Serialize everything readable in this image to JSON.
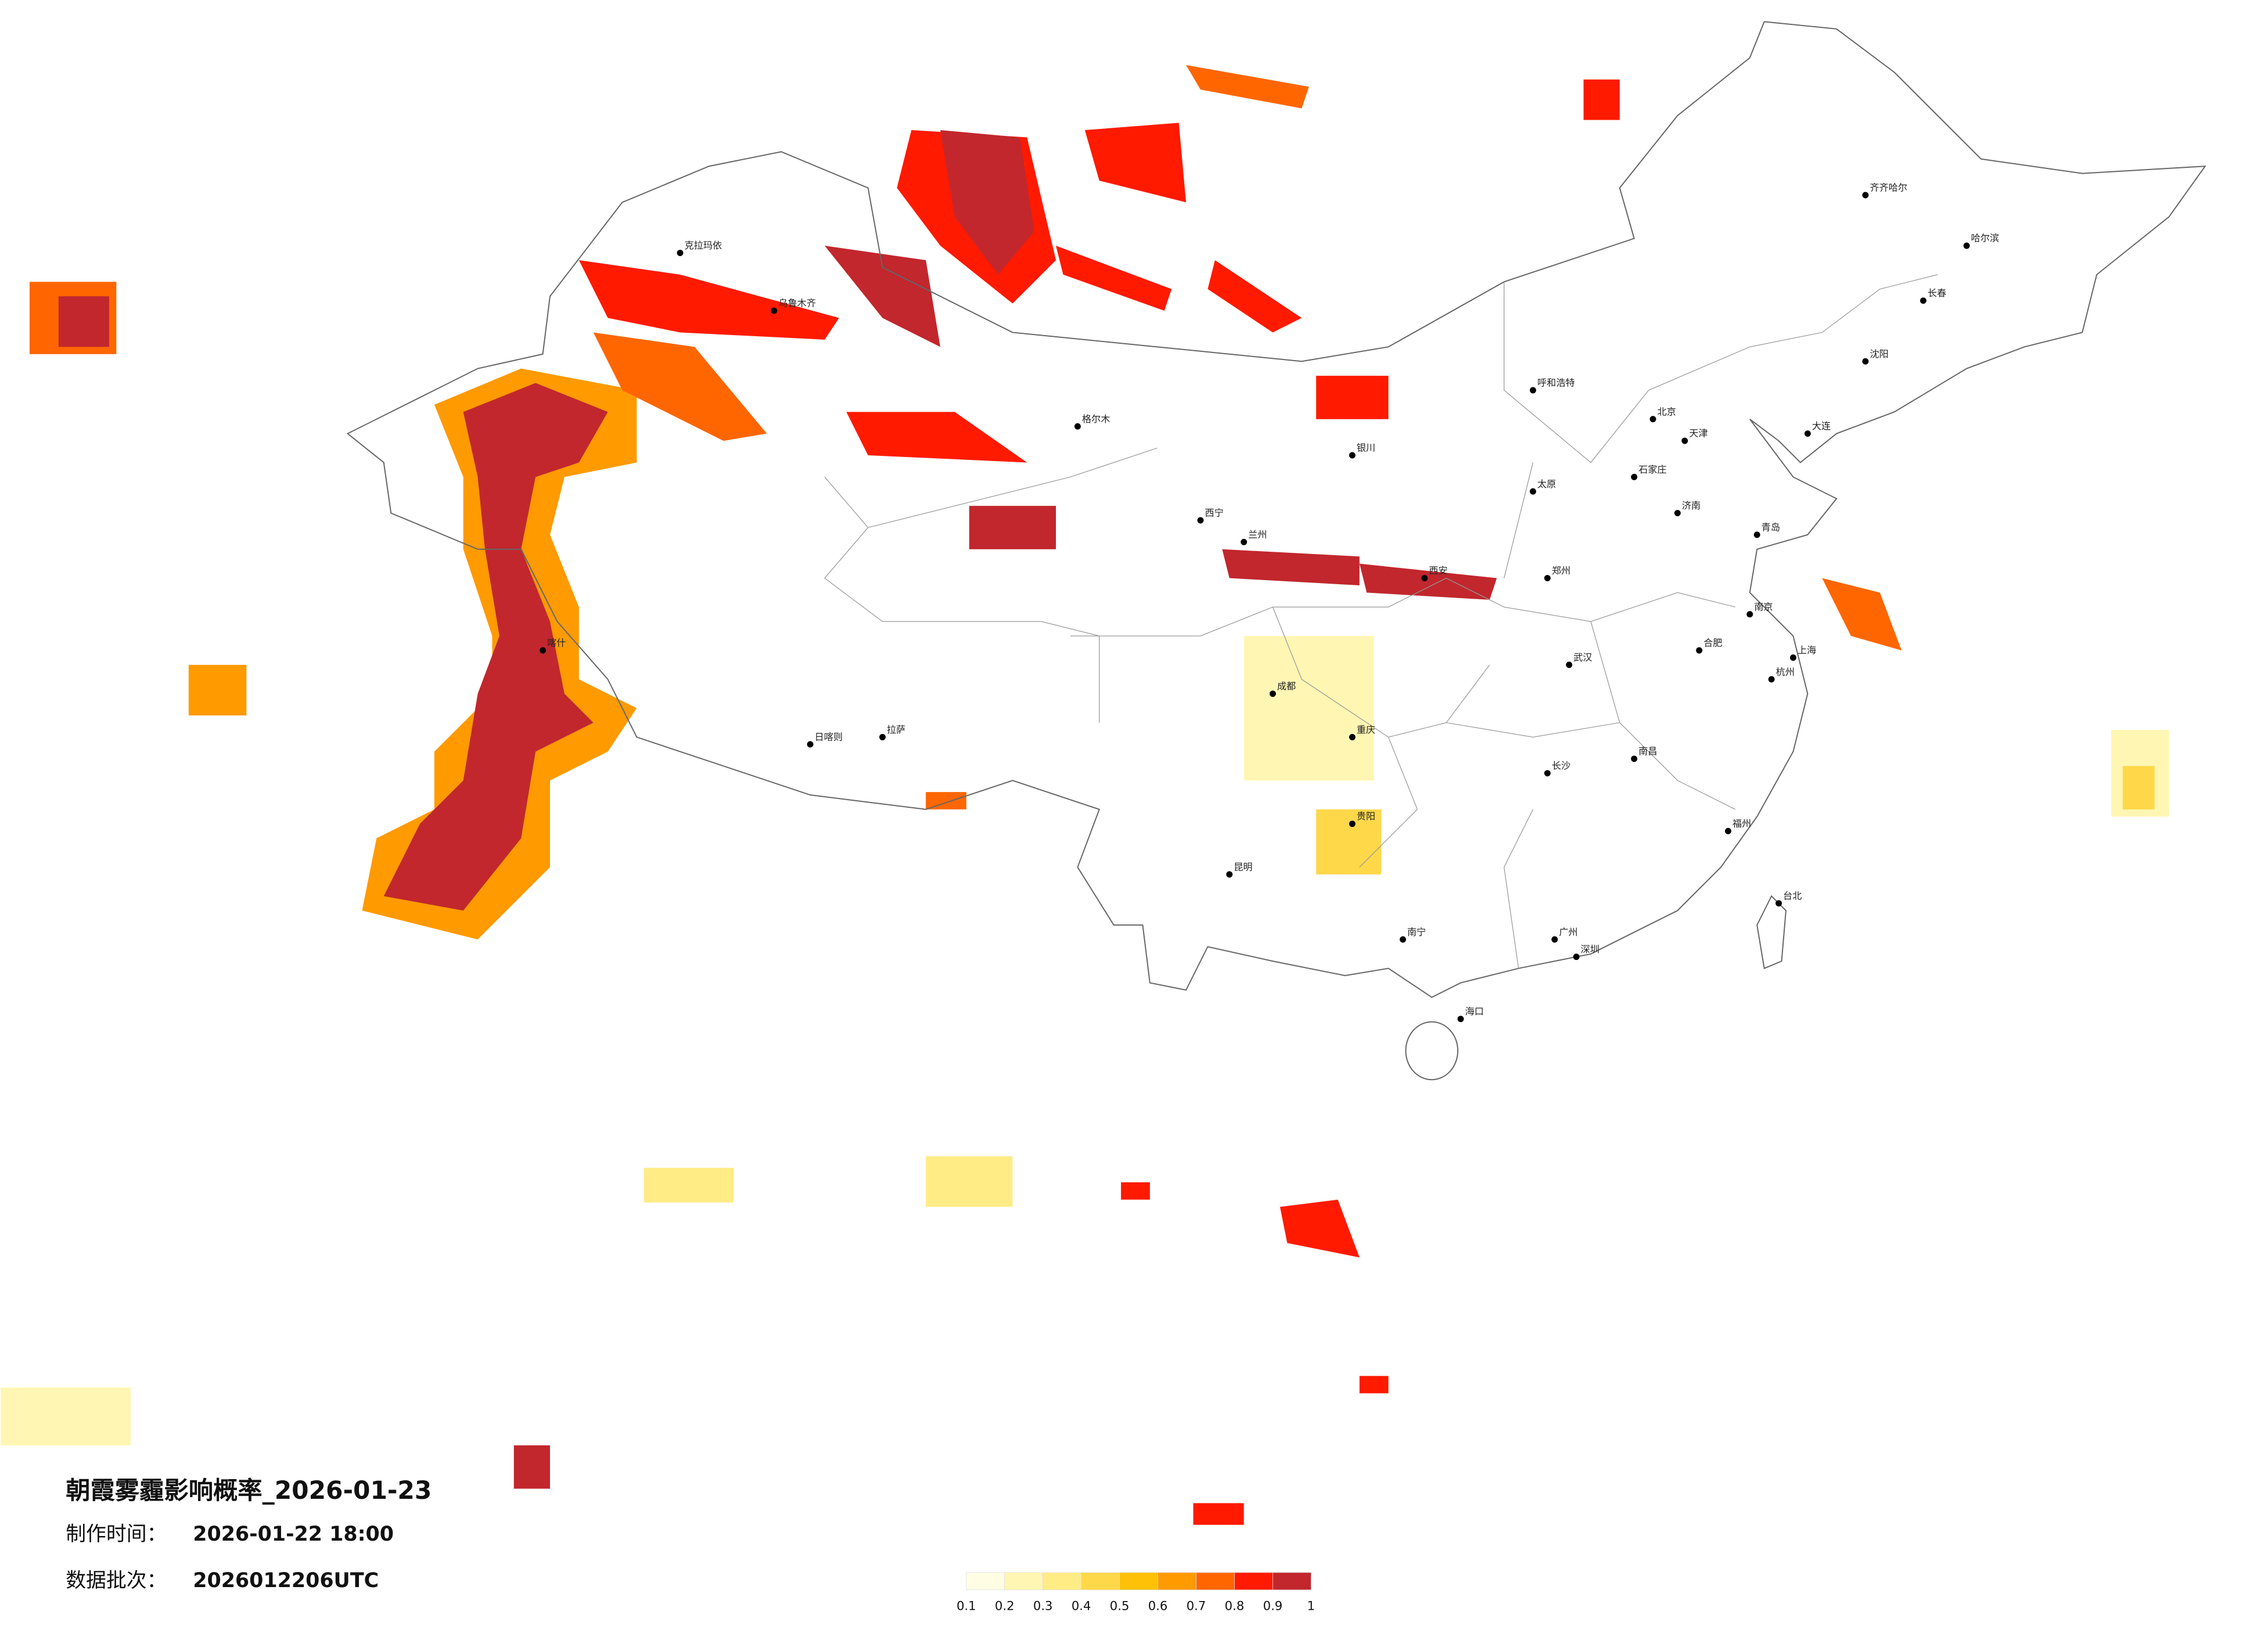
{
  "title": "朝霞雾霾影响概率_2026-01-23",
  "production_time": {
    "label": "制作时间：",
    "value": "2026-01-22 18:00"
  },
  "batch": {
    "label": "数据批次：",
    "value": "2026012206UTC"
  },
  "legend": {
    "colors": [
      "#fffde3",
      "#fff6b3",
      "#ffec85",
      "#ffd84a",
      "#ffc107",
      "#ff9a00",
      "#ff6600",
      "#ff1a00",
      "#c1272d"
    ],
    "ticks": [
      0.1,
      0.2,
      0.3,
      0.4,
      0.5,
      0.6,
      0.7,
      0.8,
      0.9,
      1
    ]
  },
  "cities": [
    "北京",
    "天津",
    "石家庄",
    "太原",
    "呼和浩特",
    "济南",
    "郑州",
    "西安",
    "兰州",
    "西宁",
    "银川",
    "乌鲁木齐",
    "喀什",
    "拉萨",
    "成都",
    "重庆",
    "贵阳",
    "昆明",
    "南宁",
    "广州",
    "深圳",
    "海口",
    "长沙",
    "武汉",
    "南昌",
    "合肥",
    "南京",
    "上海",
    "杭州",
    "福州",
    "台北",
    "沈阳",
    "长春",
    "哈尔滨",
    "齐齐哈尔",
    "大连",
    "青岛",
    "克拉玛依",
    "格尔木",
    "日喀则"
  ]
}
